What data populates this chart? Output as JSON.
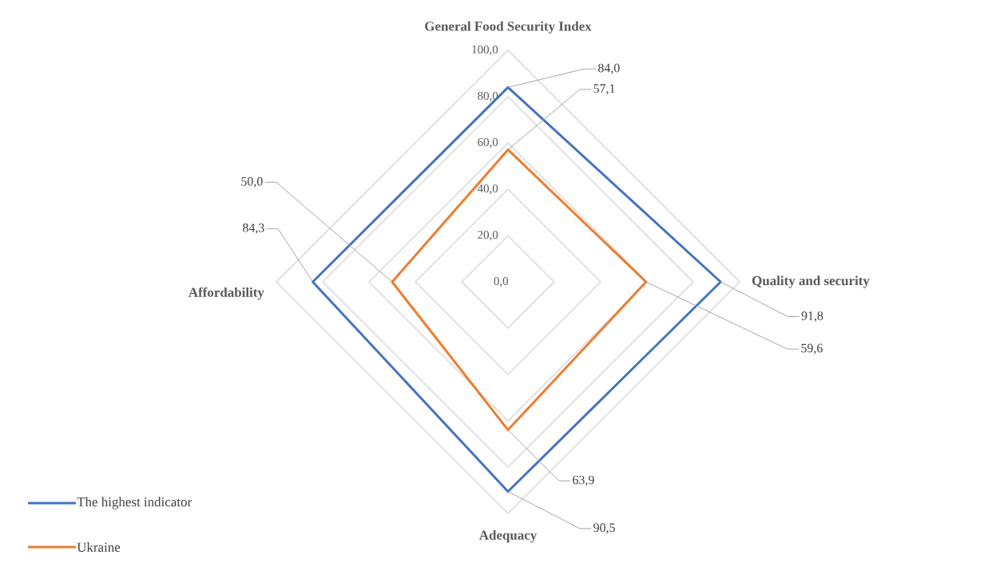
{
  "chart_data": {
    "type": "radar",
    "categories": [
      "General Food Security Index",
      "Quality and security",
      "Adequacy",
      "Affordability"
    ],
    "series": [
      {
        "name": "The highest indicator",
        "color": "#4472c4",
        "values": [
          84.0,
          91.8,
          90.5,
          84.3
        ],
        "value_labels": [
          "84,0",
          "91,8",
          "90,5",
          "84,3"
        ]
      },
      {
        "name": "Ukraine",
        "color": "#ed7d31",
        "values": [
          57.1,
          59.6,
          63.9,
          50.0
        ],
        "value_labels": [
          "57,1",
          "59,6",
          "63,9",
          "50,0"
        ]
      }
    ],
    "ylim": [
      0,
      100
    ],
    "yticks": [
      {
        "value": 0,
        "label": "0,0"
      },
      {
        "value": 20,
        "label": "20,0"
      },
      {
        "value": 40,
        "label": "40,0"
      },
      {
        "value": 60,
        "label": "60,0"
      },
      {
        "value": 80,
        "label": "80,0"
      },
      {
        "value": 100,
        "label": "100,0"
      }
    ],
    "grid": true,
    "legend": "bottom left"
  }
}
